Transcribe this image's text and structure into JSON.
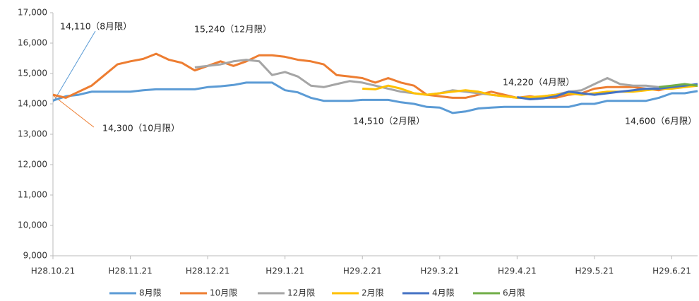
{
  "chart_data": {
    "type": "line",
    "categories": [
      "H28.10.21",
      null,
      null,
      null,
      null,
      null,
      "H28.11.21",
      null,
      null,
      null,
      null,
      null,
      "H28.12.21",
      null,
      null,
      null,
      null,
      null,
      "H29.1.21",
      null,
      null,
      null,
      null,
      null,
      "H29.2.21",
      null,
      null,
      null,
      null,
      null,
      "H29.3.21",
      null,
      null,
      null,
      null,
      null,
      "H29.4.21",
      null,
      null,
      null,
      null,
      null,
      "H29.5.21",
      null,
      null,
      null,
      null,
      null,
      "H29.6.21",
      null,
      null
    ],
    "ylim": [
      9000,
      17000
    ],
    "yticks": [
      {
        "value": 9000,
        "label": "9,000"
      },
      {
        "value": 10000,
        "label": "10,000"
      },
      {
        "value": 11000,
        "label": "11,000"
      },
      {
        "value": 12000,
        "label": "12,000"
      },
      {
        "value": 13000,
        "label": "13,000"
      },
      {
        "value": 14000,
        "label": "14,000"
      },
      {
        "value": 15000,
        "label": "15,000"
      },
      {
        "value": 16000,
        "label": "16,000"
      },
      {
        "value": 17000,
        "label": "17,000"
      }
    ],
    "grid": false,
    "legend": "bottom",
    "series": [
      {
        "name": "8月限",
        "color": "#5b9bd5",
        "values": [
          14110,
          14250,
          14300,
          14400,
          14400,
          14400,
          14400,
          14450,
          14480,
          14480,
          14480,
          14480,
          14550,
          14580,
          14620,
          14700,
          14700,
          14700,
          14450,
          14380,
          14200,
          14100,
          14100,
          14100,
          14130,
          14130,
          14130,
          14050,
          14000,
          13900,
          13880,
          13700,
          13750,
          13850,
          13880,
          13900,
          13900,
          13900,
          13900,
          13900,
          13900,
          14000,
          14000,
          14100,
          14100,
          14100,
          14100,
          14200,
          14350,
          14350,
          14420
        ]
      },
      {
        "name": "10月限",
        "color": "#ed7d31",
        "values": [
          14300,
          14200,
          14400,
          14600,
          14950,
          15300,
          15400,
          15480,
          15650,
          15450,
          15350,
          15100,
          15250,
          15400,
          15250,
          15400,
          15600,
          15600,
          15550,
          15450,
          15400,
          15300,
          14950,
          14900,
          14850,
          14700,
          14850,
          14700,
          14600,
          14300,
          14250,
          14200,
          14200,
          14300,
          14400,
          14300,
          14200,
          14250,
          14200,
          14200,
          14300,
          14350,
          14500,
          14550,
          14550,
          14550,
          14500,
          14450,
          14550,
          14600,
          14600
        ]
      },
      {
        "name": "12月限",
        "color": "#a5a5a5",
        "values": [
          null,
          null,
          null,
          null,
          null,
          null,
          null,
          null,
          null,
          null,
          null,
          15200,
          15250,
          15300,
          15400,
          15450,
          15400,
          14950,
          15050,
          14900,
          14600,
          14550,
          14650,
          14750,
          14700,
          14600,
          14500,
          14400,
          14350,
          14300,
          14350,
          14450,
          14400,
          14350,
          14300,
          14250,
          14200,
          14200,
          14250,
          14300,
          14400,
          14450,
          14650,
          14850,
          14650,
          14600,
          14600,
          14550,
          14550,
          14600,
          14600
        ]
      },
      {
        "name": "2月限",
        "color": "#ffc000",
        "values": [
          null,
          null,
          null,
          null,
          null,
          null,
          null,
          null,
          null,
          null,
          null,
          null,
          null,
          null,
          null,
          null,
          null,
          null,
          null,
          null,
          null,
          null,
          null,
          null,
          14500,
          14480,
          14600,
          14500,
          14350,
          14300,
          14350,
          14400,
          14450,
          14400,
          14300,
          14250,
          14200,
          14220,
          14250,
          14300,
          14350,
          14300,
          14350,
          14400,
          14400,
          14400,
          14450,
          14500,
          14500,
          14550,
          14600
        ]
      },
      {
        "name": "4月限",
        "color": "#4472c4",
        "values": [
          null,
          null,
          null,
          null,
          null,
          null,
          null,
          null,
          null,
          null,
          null,
          null,
          null,
          null,
          null,
          null,
          null,
          null,
          null,
          null,
          null,
          null,
          null,
          null,
          null,
          null,
          null,
          null,
          null,
          null,
          null,
          null,
          null,
          null,
          null,
          null,
          14220,
          14150,
          14180,
          14250,
          14400,
          14350,
          14300,
          14350,
          14400,
          14450,
          14500,
          14500,
          14550,
          14600,
          14650
        ]
      },
      {
        "name": "6月限",
        "color": "#70ad47",
        "values": [
          null,
          null,
          null,
          null,
          null,
          null,
          null,
          null,
          null,
          null,
          null,
          null,
          null,
          null,
          null,
          null,
          null,
          null,
          null,
          null,
          null,
          null,
          null,
          null,
          null,
          null,
          null,
          null,
          null,
          null,
          null,
          null,
          null,
          null,
          null,
          null,
          null,
          null,
          null,
          null,
          null,
          null,
          null,
          null,
          null,
          null,
          null,
          14550,
          14600,
          14650,
          14600
        ]
      }
    ],
    "annotations": [
      "14,110（8月限）",
      "15,240（12月限）",
      "14,300（10月限）",
      "14,510（2月限）",
      "14,220（4月限）",
      "14,600（6月限）"
    ]
  }
}
